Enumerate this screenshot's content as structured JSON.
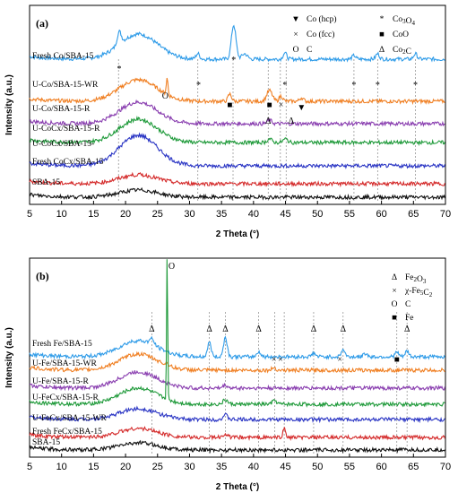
{
  "chart_data": [
    {
      "panel": "(a)",
      "type": "line",
      "xlabel": "2 Theta (°)",
      "ylabel": "Intensity (a.u.)",
      "xlim": [
        5,
        70
      ],
      "xticks": [
        5,
        10,
        15,
        20,
        25,
        30,
        35,
        40,
        45,
        50,
        55,
        60,
        65,
        70
      ],
      "series": [
        {
          "name": "Fresh Co/SBA-15",
          "color": "#2e9be8"
        },
        {
          "name": "U-Co/SBA-15-WR",
          "color": "#f07f22"
        },
        {
          "name": "U-Co/SBA-15-R",
          "color": "#8a3fb0"
        },
        {
          "name": "U-CoCx/SBA-15-R",
          "color": "#1f9a3a"
        },
        {
          "name": "U-CoCx/SBA-15-",
          "color": "#2a35c4"
        },
        {
          "name": "Fresh CoCx/SBA-15",
          "color": "#d42a2a"
        },
        {
          "name": "SBA-15",
          "color": "#111111"
        }
      ],
      "legend": [
        {
          "symbol": "▼",
          "text": "Co (hcp)"
        },
        {
          "symbol": "*",
          "text": "Co3O4"
        },
        {
          "symbol": "×",
          "text": "Co (fcc)"
        },
        {
          "symbol": "■",
          "text": "CoO"
        },
        {
          "symbol": "O",
          "text": "C"
        },
        {
          "symbol": "Δ",
          "text": "Co2C"
        }
      ],
      "reference_lines": [
        18.9,
        31.3,
        36.8,
        42.3,
        44.2,
        45.1,
        55.7,
        59.4,
        65.3
      ],
      "markers": [
        {
          "symbol": "*",
          "x": 19.0
        },
        {
          "symbol": "*",
          "x": 31.4
        },
        {
          "symbol": "*",
          "x": 36.9
        },
        {
          "symbol": "*",
          "x": 44.9
        },
        {
          "symbol": "*",
          "x": 55.7
        },
        {
          "symbol": "*",
          "x": 59.4
        },
        {
          "symbol": "*",
          "x": 65.3
        },
        {
          "symbol": "O",
          "x": 26.2
        },
        {
          "symbol": "■",
          "x": 36.3
        },
        {
          "symbol": "■",
          "x": 42.5
        },
        {
          "symbol": "×",
          "x": 44.3
        },
        {
          "symbol": "▼",
          "x": 47.5
        },
        {
          "symbol": "Δ",
          "x": 42.3
        },
        {
          "symbol": "Δ",
          "x": 45.9
        }
      ]
    },
    {
      "panel": "(b)",
      "type": "line",
      "xlabel": "2 Theta (°)",
      "ylabel": "Intensity (a.u.)",
      "xlim": [
        5,
        70
      ],
      "xticks": [
        5,
        10,
        15,
        20,
        25,
        30,
        35,
        40,
        45,
        50,
        55,
        60,
        65,
        70
      ],
      "series": [
        {
          "name": "Fresh Fe/SBA-15",
          "color": "#2e9be8"
        },
        {
          "name": "U-Fe/SBA-15-WR",
          "color": "#f07f22"
        },
        {
          "name": "U-Fe/SBA-15-R",
          "color": "#8a3fb0"
        },
        {
          "name": "U-FeCx/SBA-15-R",
          "color": "#1f9a3a"
        },
        {
          "name": "U-FeCx/SBA-15-WR",
          "color": "#2a35c4"
        },
        {
          "name": "Fresh FeCx/SBA-15",
          "color": "#d42a2a"
        },
        {
          "name": "SBA-15",
          "color": "#111111"
        }
      ],
      "legend": [
        {
          "symbol": "Δ",
          "text": "Fe2O3"
        },
        {
          "symbol": "×",
          "text": "χ-Fe5C2"
        },
        {
          "symbol": "O",
          "text": "C"
        },
        {
          "symbol": "■",
          "text": "Fe"
        }
      ],
      "reference_lines": [
        24.1,
        33.1,
        35.6,
        40.8,
        43.3,
        44.8,
        49.4,
        54.0,
        62.4,
        64.0
      ],
      "markers": [
        {
          "symbol": "O",
          "x": 26.5
        },
        {
          "symbol": "Δ",
          "x": 24.1
        },
        {
          "symbol": "Δ",
          "x": 33.1
        },
        {
          "symbol": "Δ",
          "x": 35.6
        },
        {
          "symbol": "Δ",
          "x": 40.8
        },
        {
          "symbol": "Δ",
          "x": 49.4
        },
        {
          "symbol": "Δ",
          "x": 54.0
        },
        {
          "symbol": "Δ",
          "x": 64.0
        },
        {
          "symbol": "×",
          "x": 43.2
        },
        {
          "symbol": "×",
          "x": 44.2
        },
        {
          "symbol": "×",
          "x": 53.5
        },
        {
          "symbol": "■",
          "x": 62.4
        }
      ]
    }
  ]
}
